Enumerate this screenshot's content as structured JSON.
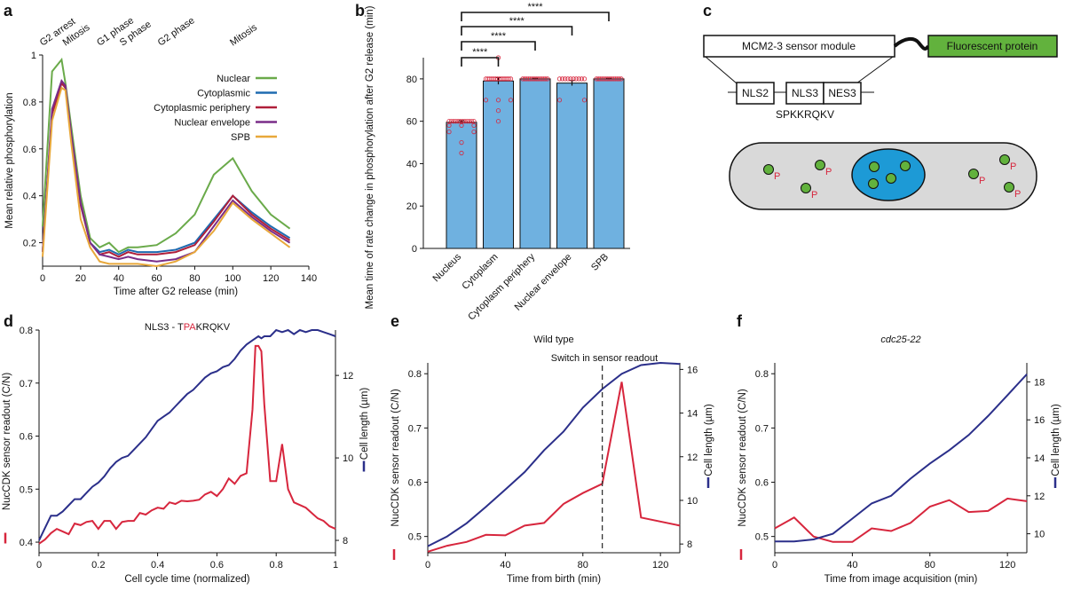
{
  "panels": {
    "a": "a",
    "b": "b",
    "c": "c",
    "d": "d",
    "e": "e",
    "f": "f"
  },
  "colors": {
    "nuclear": "#6aaa4a",
    "cytoplasmic": "#1f6bb0",
    "periphery": "#b01f3a",
    "envelope": "#7a2d88",
    "spb": "#e8a83a",
    "bar": "#6fb1e0",
    "red": "#d7263d",
    "navy": "#2b2f8a",
    "cyan": "#1d9ad6",
    "gfp": "#62b23d",
    "cell": "#d9d9d9"
  },
  "chart_data": [
    {
      "id": "a",
      "type": "line",
      "xlabel": "Time after G2 release (min)",
      "ylabel": "Mean relative phosphorylation",
      "xlim": [
        0,
        140
      ],
      "ylim": [
        0.1,
        1.0
      ],
      "xticks": [
        "0",
        "20",
        "40",
        "60",
        "80",
        "100",
        "120",
        "140"
      ],
      "yticks": [
        "0.2",
        "0.4",
        "0.6",
        "0.8",
        "1"
      ],
      "phase_labels": [
        {
          "text": "G2 arrest",
          "x": 0
        },
        {
          "text": "Mitosis",
          "x": 12
        },
        {
          "text": "G1 phase",
          "x": 30
        },
        {
          "text": "S phase",
          "x": 42
        },
        {
          "text": "G2 phase",
          "x": 62
        },
        {
          "text": "Mitosis",
          "x": 100
        }
      ],
      "x": [
        0,
        5,
        10,
        12,
        15,
        20,
        25,
        30,
        35,
        40,
        45,
        50,
        60,
        70,
        80,
        90,
        100,
        110,
        120,
        130
      ],
      "series": [
        {
          "name": "Nuclear",
          "color": "nuclear",
          "values": [
            0.27,
            0.93,
            0.98,
            0.88,
            0.7,
            0.4,
            0.22,
            0.18,
            0.2,
            0.16,
            0.18,
            0.18,
            0.19,
            0.24,
            0.32,
            0.49,
            0.56,
            0.42,
            0.32,
            0.26
          ]
        },
        {
          "name": "Cytoplasmic",
          "color": "cytoplasmic",
          "values": [
            0.16,
            0.75,
            0.88,
            0.86,
            0.66,
            0.36,
            0.2,
            0.16,
            0.17,
            0.15,
            0.17,
            0.16,
            0.16,
            0.17,
            0.2,
            0.3,
            0.4,
            0.33,
            0.27,
            0.22
          ]
        },
        {
          "name": "Cytoplasmic periphery",
          "color": "periphery",
          "values": [
            0.16,
            0.75,
            0.88,
            0.86,
            0.66,
            0.36,
            0.2,
            0.15,
            0.16,
            0.14,
            0.16,
            0.15,
            0.15,
            0.16,
            0.19,
            0.29,
            0.4,
            0.32,
            0.26,
            0.21
          ]
        },
        {
          "name": "Nuclear envelope",
          "color": "envelope",
          "values": [
            0.16,
            0.77,
            0.89,
            0.87,
            0.67,
            0.37,
            0.2,
            0.15,
            0.14,
            0.13,
            0.14,
            0.13,
            0.12,
            0.13,
            0.16,
            0.27,
            0.38,
            0.31,
            0.25,
            0.2
          ]
        },
        {
          "name": "SPB",
          "color": "spb",
          "values": [
            0.14,
            0.72,
            0.86,
            0.85,
            0.63,
            0.3,
            0.18,
            0.12,
            0.11,
            0.11,
            0.11,
            0.11,
            0.1,
            0.12,
            0.16,
            0.25,
            0.37,
            0.3,
            0.24,
            0.18
          ]
        }
      ]
    },
    {
      "id": "b",
      "type": "bar",
      "ylabel": "Mean time of rate change in phosphorylation after G2 release (min)",
      "ylim": [
        0,
        90
      ],
      "yticks": [
        "0",
        "20",
        "40",
        "60",
        "80"
      ],
      "categories": [
        "Nucleus",
        "Cytoplasm",
        "Cytoplasm periphery",
        "Nuclear envelope",
        "SPB"
      ],
      "values": [
        59.5,
        79.0,
        80.0,
        78.0,
        80.0
      ],
      "errors": [
        0.8,
        1.6,
        0.2,
        1.2,
        0.2
      ],
      "significance": [
        "****",
        "****",
        "****",
        "****"
      ]
    },
    {
      "id": "d",
      "type": "line",
      "title": "NLS3 - TPAKRQKV",
      "title_parts": [
        "NLS3 - T",
        "P",
        "A",
        "KRQKV"
      ],
      "xlabel": "Cell cycle time (normalized)",
      "ylabel": "NucCDK sensor readout (C/N)",
      "ylabel2": "Cell length (µm)",
      "xlim": [
        0,
        1
      ],
      "ylim": [
        0.38,
        0.8
      ],
      "y2lim": [
        7.7,
        13.1
      ],
      "xticks": [
        "0",
        "0.2",
        "0.4",
        "0.6",
        "0.8",
        "1"
      ],
      "yticks": [
        "0.4",
        "0.5",
        "0.6",
        "0.7",
        "0.8"
      ],
      "y2ticks": [
        "8",
        "10",
        "12"
      ],
      "x": [
        0,
        0.02,
        0.04,
        0.06,
        0.08,
        0.1,
        0.12,
        0.14,
        0.16,
        0.18,
        0.2,
        0.22,
        0.24,
        0.26,
        0.28,
        0.3,
        0.32,
        0.34,
        0.36,
        0.38,
        0.4,
        0.42,
        0.44,
        0.46,
        0.48,
        0.5,
        0.52,
        0.54,
        0.56,
        0.58,
        0.6,
        0.62,
        0.64,
        0.66,
        0.68,
        0.7,
        0.72,
        0.73,
        0.74,
        0.75,
        0.76,
        0.78,
        0.8,
        0.82,
        0.84,
        0.86,
        0.88,
        0.9,
        0.92,
        0.94,
        0.96,
        0.98,
        1.0
      ],
      "series": [
        {
          "name": "NucCDK sensor readout (C/N)",
          "color": "red",
          "axis": "left",
          "values": [
            0.397,
            0.405,
            0.417,
            0.425,
            0.42,
            0.415,
            0.435,
            0.432,
            0.438,
            0.44,
            0.425,
            0.44,
            0.44,
            0.425,
            0.438,
            0.44,
            0.44,
            0.455,
            0.452,
            0.46,
            0.465,
            0.463,
            0.475,
            0.472,
            0.478,
            0.477,
            0.478,
            0.48,
            0.49,
            0.495,
            0.487,
            0.5,
            0.52,
            0.51,
            0.525,
            0.53,
            0.65,
            0.77,
            0.77,
            0.76,
            0.66,
            0.515,
            0.515,
            0.585,
            0.5,
            0.475,
            0.47,
            0.465,
            0.455,
            0.445,
            0.44,
            0.43,
            0.425
          ]
        },
        {
          "name": "Cell length (µm)",
          "color": "navy",
          "axis": "right",
          "values": [
            8.0,
            8.3,
            8.6,
            8.6,
            8.7,
            8.85,
            9.0,
            9.0,
            9.15,
            9.3,
            9.4,
            9.55,
            9.75,
            9.9,
            10.0,
            10.05,
            10.2,
            10.35,
            10.5,
            10.7,
            10.9,
            11.0,
            11.1,
            11.25,
            11.4,
            11.55,
            11.65,
            11.8,
            11.95,
            12.05,
            12.1,
            12.2,
            12.25,
            12.4,
            12.6,
            12.75,
            12.85,
            12.9,
            12.95,
            12.9,
            12.95,
            12.95,
            13.1,
            13.05,
            13.1,
            13.0,
            13.1,
            13.05,
            13.1,
            13.1,
            13.05,
            13.0,
            12.95
          ]
        }
      ]
    },
    {
      "id": "e",
      "type": "line",
      "title": "Wild type",
      "annotation": "Switch in sensor readout",
      "switch_x": 90,
      "xlabel": "Time from birth (min)",
      "ylabel": "NucCDK sensor readout (C/N)",
      "ylabel2": "Cell length (µm)",
      "xlim": [
        0,
        130
      ],
      "ylim": [
        0.47,
        0.82
      ],
      "y2lim": [
        7.6,
        16.3
      ],
      "xticks": [
        "0",
        "40",
        "80",
        "120"
      ],
      "yticks": [
        "0.5",
        "0.6",
        "0.7",
        "0.8"
      ],
      "y2ticks": [
        "8",
        "10",
        "12",
        "14",
        "16"
      ],
      "series": [
        {
          "name": "NucCDK sensor readout (C/N)",
          "color": "red",
          "axis": "left",
          "x": [
            0,
            10,
            20,
            30,
            40,
            50,
            60,
            70,
            80,
            90,
            100,
            110,
            130
          ],
          "values": [
            0.472,
            0.483,
            0.49,
            0.503,
            0.502,
            0.52,
            0.525,
            0.56,
            0.58,
            0.597,
            0.785,
            0.535,
            0.52
          ]
        },
        {
          "name": "Cell length (µm)",
          "color": "navy",
          "axis": "right",
          "x": [
            0,
            10,
            20,
            30,
            40,
            50,
            60,
            70,
            80,
            90,
            100,
            110,
            120,
            130
          ],
          "values": [
            7.9,
            8.35,
            8.95,
            9.7,
            10.5,
            11.3,
            12.3,
            13.15,
            14.25,
            15.1,
            15.8,
            16.2,
            16.3,
            16.25
          ]
        }
      ]
    },
    {
      "id": "f",
      "type": "line",
      "title": "cdc25-22",
      "xlabel": "Time from image acquisition (min)",
      "ylabel": "NucCDK sensor readout (C/N)",
      "ylabel2": "Cell length (µm)",
      "xlim": [
        0,
        130
      ],
      "ylim": [
        0.47,
        0.82
      ],
      "y2lim": [
        9.0,
        19.0
      ],
      "xticks": [
        "0",
        "40",
        "80",
        "120"
      ],
      "yticks": [
        "0.5",
        "0.6",
        "0.7",
        "0.8"
      ],
      "y2ticks": [
        "10",
        "12",
        "14",
        "16",
        "18"
      ],
      "series": [
        {
          "name": "NucCDK sensor readout (C/N)",
          "color": "red",
          "axis": "left",
          "x": [
            0,
            10,
            20,
            30,
            40,
            50,
            60,
            70,
            80,
            90,
            100,
            110,
            120,
            130
          ],
          "values": [
            0.515,
            0.535,
            0.5,
            0.49,
            0.49,
            0.515,
            0.51,
            0.525,
            0.555,
            0.567,
            0.545,
            0.547,
            0.57,
            0.565
          ]
        },
        {
          "name": "Cell length (µm)",
          "color": "navy",
          "axis": "right",
          "x": [
            0,
            10,
            20,
            30,
            40,
            50,
            60,
            70,
            80,
            90,
            100,
            110,
            120,
            130
          ],
          "values": [
            9.6,
            9.6,
            9.7,
            10.0,
            10.8,
            11.6,
            12.0,
            12.9,
            13.7,
            14.4,
            15.2,
            16.2,
            17.3,
            18.4
          ]
        }
      ]
    }
  ],
  "diagram_c": {
    "module_label": "MCM2-3 sensor module",
    "fp_label": "Fluorescent protein",
    "boxes": [
      "NLS2",
      "NLS3",
      "NES3"
    ],
    "sequence": "SPKKRQKV",
    "phospho_label": "P"
  }
}
